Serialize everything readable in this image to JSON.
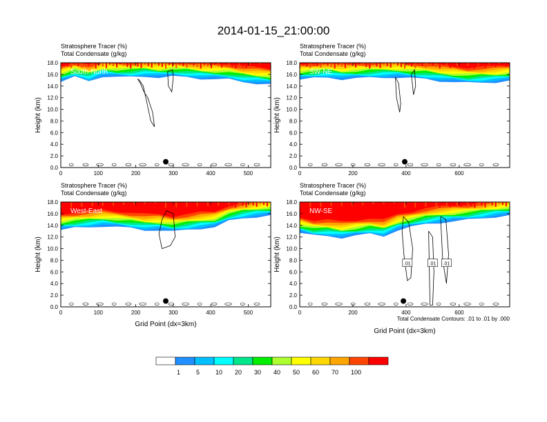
{
  "figure_title": "2014-01-15_21:00:00",
  "colorbar": {
    "colors": [
      "#ffffff",
      "#1e90ff",
      "#00bfff",
      "#00ffff",
      "#00e68a",
      "#00ee00",
      "#adff2f",
      "#ffff00",
      "#ffd700",
      "#ffa500",
      "#ff4500",
      "#ff0000"
    ],
    "labels": [
      "1",
      "5",
      "10",
      "20",
      "30",
      "40",
      "50",
      "60",
      "70",
      "100"
    ]
  },
  "chart_data": [
    {
      "type": "area",
      "title": "South-North",
      "subtitle_1": "Stratosphere Tracer   (%)",
      "subtitle_2": "Total Condensate   (g/kg)",
      "ylabel": "Height (km)",
      "xlabel": "",
      "xlim": [
        0,
        560
      ],
      "ylim": [
        0,
        18
      ],
      "xticks": [
        "0",
        "100",
        "200",
        "300",
        "400",
        "500"
      ],
      "yticks": [
        "0.0",
        "2.0",
        "4.0",
        "6.0",
        "8.0",
        "10.0",
        "12.0",
        "14.0",
        "16.0",
        "18.0"
      ],
      "marker_x": 280,
      "tracer_base_km": [
        15.0,
        15.8,
        15.2,
        16.0,
        15.8,
        15.8,
        16.0,
        15.8,
        15.9,
        15.8,
        15.6,
        15.5,
        15.4,
        15.0,
        14.8,
        14.6
      ],
      "condensate_contours": [
        {
          "x": [
            210,
            220,
            230,
            240,
            250,
            245,
            232,
            222,
            212,
            205,
            210
          ],
          "y": [
            15.0,
            14.0,
            11.0,
            8.0,
            7.0,
            9.5,
            12.0,
            13.0,
            14.5,
            15.2,
            15.0
          ]
        },
        {
          "x": [
            285,
            298,
            300,
            296,
            287,
            285
          ],
          "y": [
            16.5,
            16.8,
            15.5,
            13.0,
            14.0,
            16.5
          ]
        }
      ]
    },
    {
      "type": "area",
      "title": "SW-NE",
      "subtitle_1": "Stratosphere Tracer   (%)",
      "subtitle_2": "Total Condensate   (g/kg)",
      "ylabel": "Height (km)",
      "xlabel": "",
      "xlim": [
        0,
        790
      ],
      "ylim": [
        0,
        18
      ],
      "xticks": [
        "0",
        "200",
        "400",
        "600"
      ],
      "yticks": [
        "0.0",
        "2.0",
        "4.0",
        "6.0",
        "8.0",
        "10.0",
        "12.0",
        "14.0",
        "16.0",
        "18.0"
      ],
      "marker_x": 395,
      "tracer_base_km": [
        15.4,
        15.6,
        15.8,
        15.5,
        15.6,
        15.7,
        15.8,
        15.8,
        15.6,
        15.5,
        15.2,
        15.0,
        14.8,
        14.9,
        15.0,
        15.2
      ],
      "condensate_contours": [
        {
          "x": [
            360,
            372,
            380,
            376,
            364,
            360
          ],
          "y": [
            15.5,
            14.5,
            11.0,
            9.5,
            12.0,
            15.5
          ]
        },
        {
          "x": [
            420,
            432,
            436,
            428,
            420
          ],
          "y": [
            16.0,
            16.8,
            14.0,
            12.5,
            16.0
          ]
        }
      ]
    },
    {
      "type": "area",
      "title": "West-East",
      "subtitle_1": "Stratosphere Tracer   (%)",
      "subtitle_2": "Total Condensate   (g/kg)",
      "ylabel": "Height (km)",
      "xlabel": "Grid Point (dx=3km)",
      "xlim": [
        0,
        560
      ],
      "ylim": [
        0,
        18
      ],
      "xticks": [
        "0",
        "100",
        "200",
        "300",
        "400",
        "500"
      ],
      "yticks": [
        "0.0",
        "2.0",
        "4.0",
        "6.0",
        "8.0",
        "10.0",
        "12.0",
        "14.0",
        "16.0",
        "18.0"
      ],
      "marker_x": 280,
      "tracer_base_km": [
        13.5,
        13.8,
        14.0,
        14.2,
        14.0,
        13.8,
        13.5,
        13.5,
        13.2,
        13.5,
        13.8,
        14.0,
        15.0,
        15.5,
        15.8,
        16.0
      ],
      "condensate_contours": [
        {
          "x": [
            270,
            282,
            300,
            305,
            292,
            270,
            262,
            270
          ],
          "y": [
            15.0,
            16.5,
            16.0,
            12.0,
            10.5,
            10.0,
            12.5,
            15.0
          ]
        }
      ]
    },
    {
      "type": "area",
      "title": "NW-SE",
      "subtitle_1": "Stratosphere Tracer   (%)",
      "subtitle_2": "Total Condensate   (g/kg)",
      "ylabel": "Height (km)",
      "xlabel": "Grid Point (dx=3km)",
      "xlim": [
        0,
        790
      ],
      "ylim": [
        0,
        18
      ],
      "xticks": [
        "0",
        "200",
        "400",
        "600"
      ],
      "yticks": [
        "0.0",
        "2.0",
        "4.0",
        "6.0",
        "8.0",
        "10.0",
        "12.0",
        "14.0",
        "16.0",
        "18.0"
      ],
      "marker_x": 390,
      "tracer_base_km": [
        13.0,
        12.5,
        12.5,
        12.2,
        12.5,
        12.8,
        12.5,
        13.5,
        14.0,
        14.5,
        14.8,
        15.0,
        15.2,
        15.5,
        15.8,
        16.0
      ],
      "contour_note": "Total Condensate Contours: .01 to .01 by .000",
      "contour_labels": [
        ".01",
        ".01",
        ".01"
      ],
      "condensate_contours": [
        {
          "x": [
            390,
            410,
            425,
            418,
            405,
            392,
            385,
            390
          ],
          "y": [
            15.5,
            14.5,
            10.0,
            5.0,
            4.5,
            9.0,
            13.0,
            15.5
          ]
        },
        {
          "x": [
            485,
            500,
            505,
            500,
            490,
            485
          ],
          "y": [
            13.0,
            12.0,
            6.0,
            0.3,
            0.3,
            13.0
          ]
        },
        {
          "x": [
            530,
            550,
            560,
            552,
            538,
            530
          ],
          "y": [
            15.5,
            15.0,
            9.0,
            4.0,
            8.0,
            15.5
          ]
        }
      ]
    }
  ]
}
